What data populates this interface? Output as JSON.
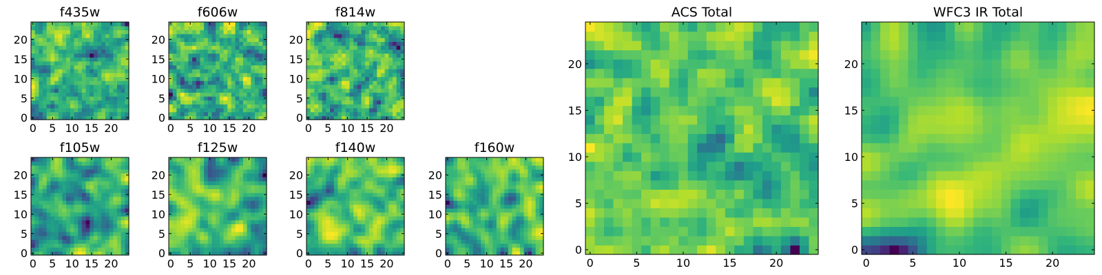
{
  "chart_data": [
    {
      "type": "heatmap",
      "title": "f435w",
      "grid": false,
      "colormap": "viridis",
      "xlim": [
        -0.5,
        24.5
      ],
      "ylim": [
        -0.5,
        24.5
      ],
      "xticks": [
        "0",
        "5",
        "10",
        "15",
        "20"
      ],
      "yticks": [
        "0",
        "5",
        "10",
        "15",
        "20"
      ],
      "rows": 25,
      "cols": 25,
      "smooth": 0.35,
      "seed": 11
    },
    {
      "type": "heatmap",
      "title": "f606w",
      "grid": false,
      "colormap": "viridis",
      "xlim": [
        -0.5,
        24.5
      ],
      "ylim": [
        -0.5,
        24.5
      ],
      "xticks": [
        "0",
        "5",
        "10",
        "15",
        "20"
      ],
      "yticks": [
        "0",
        "5",
        "10",
        "15",
        "20"
      ],
      "rows": 25,
      "cols": 25,
      "smooth": 0.35,
      "seed": 23
    },
    {
      "type": "heatmap",
      "title": "f814w",
      "grid": false,
      "colormap": "viridis",
      "xlim": [
        -0.5,
        24.5
      ],
      "ylim": [
        -0.5,
        24.5
      ],
      "xticks": [
        "0",
        "5",
        "10",
        "15",
        "20"
      ],
      "yticks": [
        "0",
        "5",
        "10",
        "15",
        "20"
      ],
      "rows": 25,
      "cols": 25,
      "smooth": 0.35,
      "seed": 37
    },
    {
      "type": "heatmap",
      "title": "f105w",
      "grid": false,
      "colormap": "viridis",
      "xlim": [
        -0.5,
        24.5
      ],
      "ylim": [
        -0.5,
        24.5
      ],
      "xticks": [
        "0",
        "5",
        "10",
        "15",
        "20"
      ],
      "yticks": [
        "0",
        "5",
        "10",
        "15",
        "20"
      ],
      "rows": 25,
      "cols": 25,
      "smooth": 0.8,
      "seed": 41
    },
    {
      "type": "heatmap",
      "title": "f125w",
      "grid": false,
      "colormap": "viridis",
      "xlim": [
        -0.5,
        24.5
      ],
      "ylim": [
        -0.5,
        24.5
      ],
      "xticks": [
        "0",
        "5",
        "10",
        "15",
        "20"
      ],
      "yticks": [
        "0",
        "5",
        "10",
        "15",
        "20"
      ],
      "rows": 25,
      "cols": 25,
      "smooth": 0.8,
      "seed": 53
    },
    {
      "type": "heatmap",
      "title": "f140w",
      "grid": false,
      "colormap": "viridis",
      "xlim": [
        -0.5,
        24.5
      ],
      "ylim": [
        -0.5,
        24.5
      ],
      "xticks": [
        "0",
        "5",
        "10",
        "15",
        "20"
      ],
      "yticks": [
        "0",
        "5",
        "10",
        "15",
        "20"
      ],
      "rows": 25,
      "cols": 25,
      "smooth": 0.8,
      "seed": 67
    },
    {
      "type": "heatmap",
      "title": "f160w",
      "grid": false,
      "colormap": "viridis",
      "xlim": [
        -0.5,
        24.5
      ],
      "ylim": [
        -0.5,
        24.5
      ],
      "xticks": [
        "0",
        "5",
        "10",
        "15",
        "20"
      ],
      "yticks": [
        "0",
        "5",
        "10",
        "15",
        "20"
      ],
      "rows": 25,
      "cols": 25,
      "smooth": 0.8,
      "seed": 79
    },
    {
      "type": "heatmap",
      "title": "ACS Total",
      "grid": false,
      "colormap": "viridis",
      "xlim": [
        -0.5,
        24.5
      ],
      "ylim": [
        -0.5,
        24.5
      ],
      "xticks": [
        "0",
        "5",
        "10",
        "15",
        "20"
      ],
      "yticks": [
        "0",
        "5",
        "10",
        "15",
        "20"
      ],
      "rows": 25,
      "cols": 25,
      "smooth": 0.5,
      "seed": 83
    },
    {
      "type": "heatmap",
      "title": "WFC3 IR Total",
      "grid": false,
      "colormap": "viridis",
      "xlim": [
        -0.5,
        24.5
      ],
      "ylim": [
        -0.5,
        24.5
      ],
      "xticks": [
        "0",
        "5",
        "10",
        "15",
        "20"
      ],
      "yticks": [
        "0",
        "5",
        "10",
        "15",
        "20"
      ],
      "rows": 25,
      "cols": 25,
      "smooth": 1.3,
      "seed": 97
    }
  ]
}
